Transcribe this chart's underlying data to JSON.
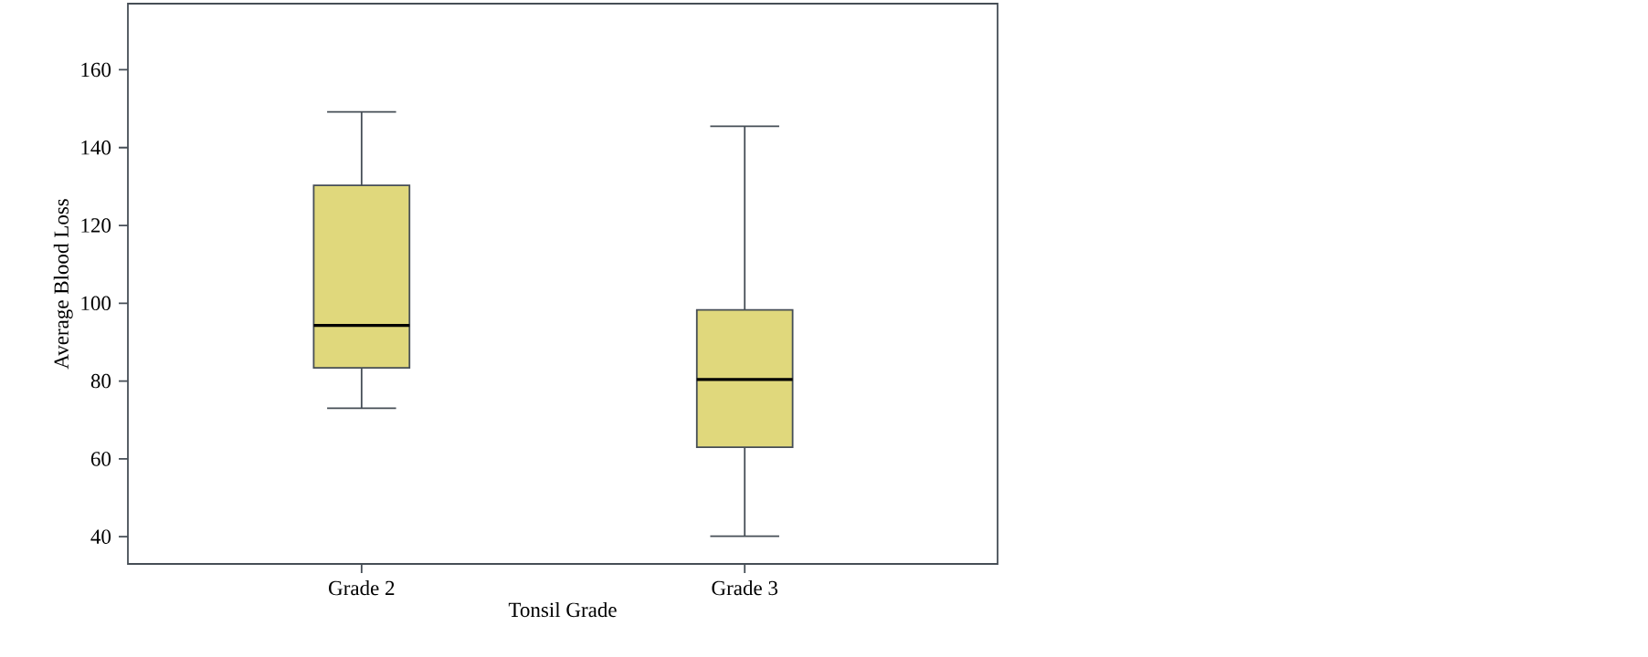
{
  "chart_data": {
    "type": "box",
    "xlabel": "Tonsil Grade",
    "ylabel": "Average Blood Loss",
    "categories": [
      "Grade 2",
      "Grade 3"
    ],
    "boxes": [
      {
        "low": 73,
        "q1": 83.4,
        "median": 94.3,
        "q3": 130.3,
        "high": 149.2
      },
      {
        "low": 40.1,
        "q1": 63,
        "median": 80.4,
        "q3": 98.3,
        "high": 145.5
      }
    ],
    "color": "#e0d87c",
    "ylim": [
      33,
      177
    ],
    "yticks": [
      40,
      60,
      80,
      100,
      120,
      140,
      160
    ],
    "grid": false
  }
}
